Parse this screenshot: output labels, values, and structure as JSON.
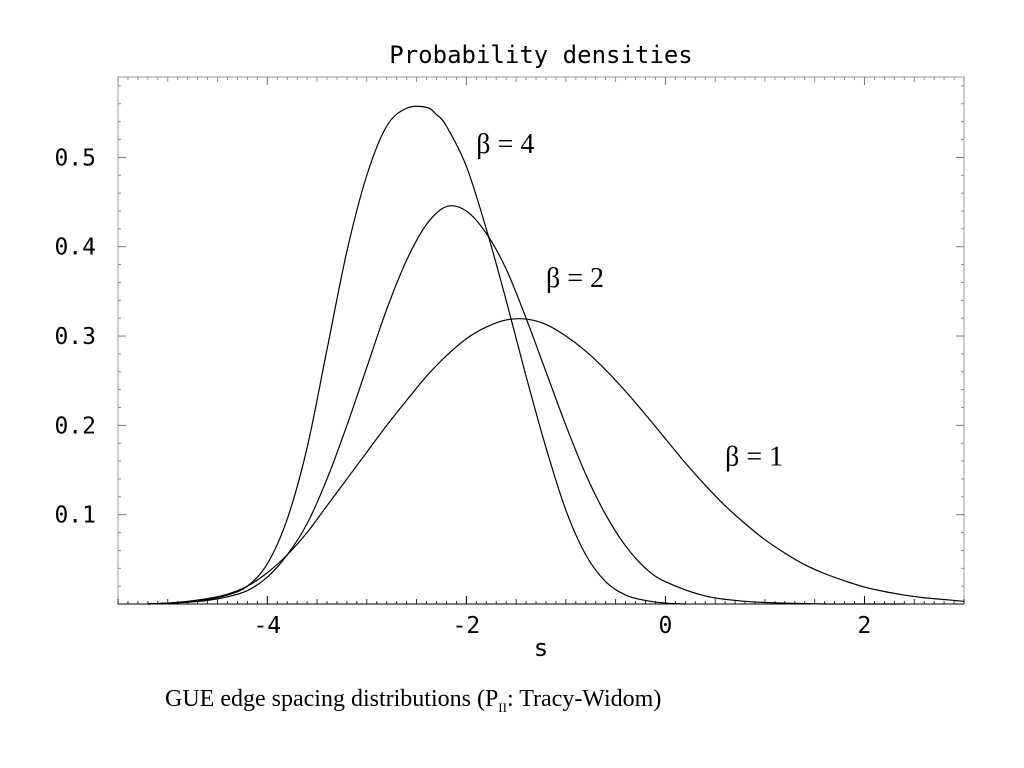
{
  "chart_data": {
    "type": "line",
    "title": "Probability densities",
    "xlabel": "s",
    "ylabel": "",
    "xlim": [
      -5.5,
      3.0
    ],
    "ylim": [
      0.0,
      0.59
    ],
    "x_ticks": [
      -4,
      -2,
      0,
      2
    ],
    "x_tick_labels": [
      "-4",
      "-2",
      "0",
      "2"
    ],
    "y_ticks": [
      0.1,
      0.2,
      0.3,
      0.4,
      0.5
    ],
    "y_tick_labels": [
      "0.1",
      "0.2",
      "0.3",
      "0.4",
      "0.5"
    ],
    "grid": false,
    "series": [
      {
        "name": "β = 4",
        "x": [
          -5.2,
          -5.0,
          -4.8,
          -4.6,
          -4.4,
          -4.2,
          -4.0,
          -3.8,
          -3.6,
          -3.4,
          -3.2,
          -3.0,
          -2.8,
          -2.6,
          -2.4,
          -2.3,
          -2.2,
          -2.0,
          -1.8,
          -1.6,
          -1.4,
          -1.2,
          -1.0,
          -0.8,
          -0.6,
          -0.4,
          -0.2,
          0.0,
          0.2
        ],
        "y": [
          0.0,
          0.001,
          0.002,
          0.005,
          0.01,
          0.02,
          0.045,
          0.095,
          0.175,
          0.285,
          0.395,
          0.48,
          0.535,
          0.555,
          0.556,
          0.548,
          0.535,
          0.49,
          0.42,
          0.34,
          0.255,
          0.175,
          0.105,
          0.055,
          0.025,
          0.01,
          0.004,
          0.001,
          0.0
        ]
      },
      {
        "name": "β = 2",
        "x": [
          -5.2,
          -5.0,
          -4.8,
          -4.6,
          -4.4,
          -4.2,
          -4.0,
          -3.8,
          -3.6,
          -3.4,
          -3.2,
          -3.0,
          -2.8,
          -2.6,
          -2.4,
          -2.2,
          -2.0,
          -1.8,
          -1.6,
          -1.4,
          -1.2,
          -1.0,
          -0.8,
          -0.6,
          -0.4,
          -0.2,
          0.0,
          0.4,
          0.8,
          1.2,
          1.6,
          2.0,
          2.4
        ],
        "y": [
          0.0,
          0.001,
          0.002,
          0.004,
          0.008,
          0.015,
          0.03,
          0.055,
          0.09,
          0.14,
          0.2,
          0.265,
          0.33,
          0.385,
          0.425,
          0.445,
          0.44,
          0.415,
          0.375,
          0.32,
          0.26,
          0.2,
          0.145,
          0.1,
          0.065,
          0.04,
          0.025,
          0.009,
          0.003,
          0.001,
          0.0,
          0.0,
          0.0
        ]
      },
      {
        "name": "β = 1",
        "x": [
          -5.2,
          -5.0,
          -4.8,
          -4.6,
          -4.4,
          -4.2,
          -4.0,
          -3.8,
          -3.6,
          -3.4,
          -3.2,
          -3.0,
          -2.8,
          -2.6,
          -2.4,
          -2.2,
          -2.0,
          -1.8,
          -1.6,
          -1.4,
          -1.2,
          -1.0,
          -0.8,
          -0.6,
          -0.4,
          -0.2,
          0.0,
          0.2,
          0.4,
          0.6,
          0.8,
          1.0,
          1.2,
          1.4,
          1.6,
          1.8,
          2.0,
          2.2,
          2.4,
          2.6,
          2.8,
          3.0
        ],
        "y": [
          0.0,
          0.001,
          0.003,
          0.006,
          0.011,
          0.02,
          0.035,
          0.055,
          0.08,
          0.11,
          0.14,
          0.17,
          0.2,
          0.228,
          0.255,
          0.278,
          0.297,
          0.31,
          0.318,
          0.319,
          0.313,
          0.3,
          0.283,
          0.262,
          0.238,
          0.212,
          0.185,
          0.158,
          0.133,
          0.11,
          0.09,
          0.072,
          0.057,
          0.044,
          0.034,
          0.026,
          0.019,
          0.014,
          0.01,
          0.007,
          0.005,
          0.003
        ]
      }
    ],
    "annotations": [
      {
        "text": "β = 4",
        "x": -1.9,
        "y": 0.505
      },
      {
        "text": "β = 2",
        "x": -1.2,
        "y": 0.355
      },
      {
        "text": "β = 1",
        "x": 0.6,
        "y": 0.155
      }
    ]
  },
  "caption": {
    "text": "GUE edge spacing distributions (P",
    "subscript": "II",
    "suffix": ": Tracy-Widom)"
  }
}
